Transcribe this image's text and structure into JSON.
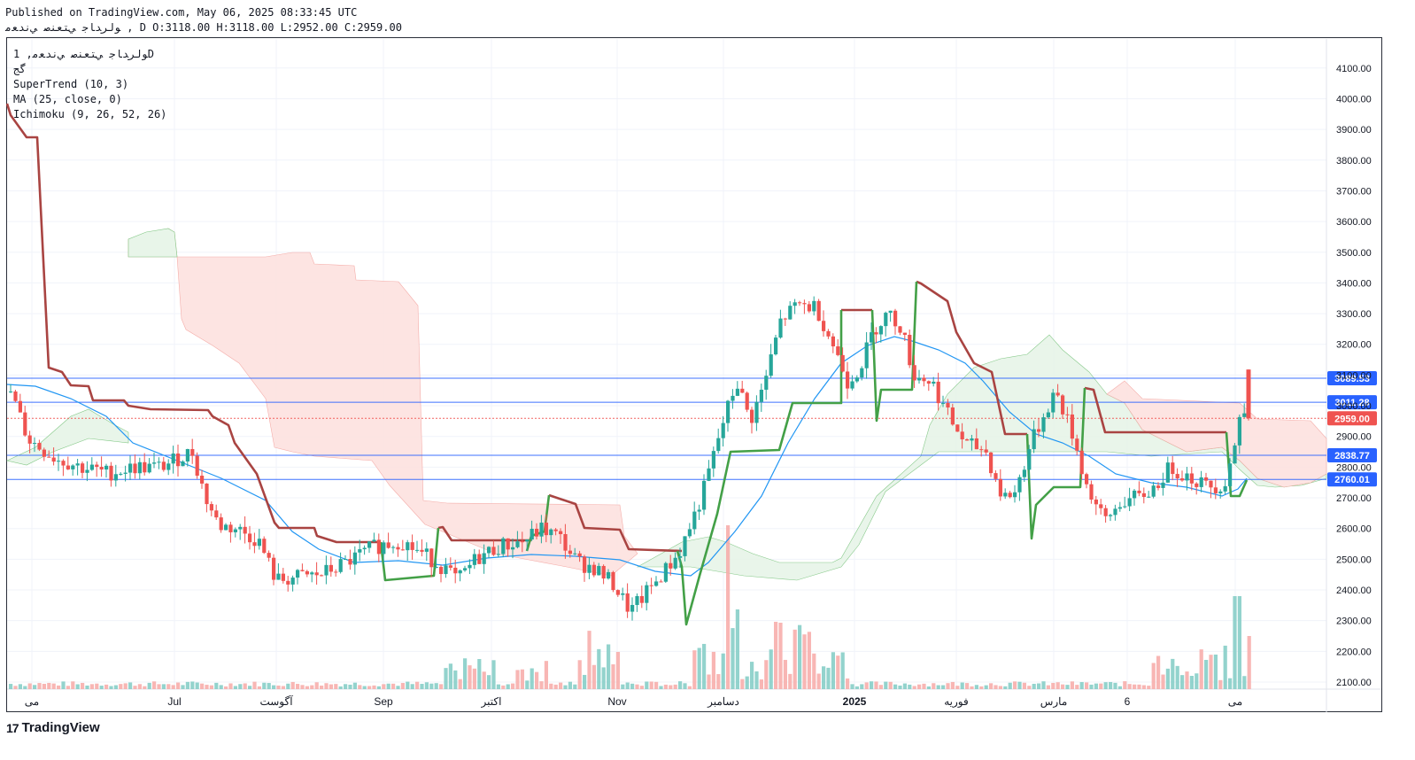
{
  "header": {
    "published": "Published on TradingView.com, May 06, 2025 08:33:45 UTC",
    "symbol_line": "ﻮﻟﺮﺪﺎﺟ ﻲﺘﻌﻨﺻ ﻲﻧﺪﻌﻣ , D O:3118.00 H:3118.00 L:2952.00 C:2959.00"
  },
  "legend": {
    "line1": "ﻮﻟﺮﺪﺎﺟ ﻲﺘﻌﻨﺻ ﻲﻧﺪﻌﻣ, 1D",
    "line2": "ﮔﺞ",
    "supertrend": "SuperTrend (10, 3)",
    "ma": "MA (25, close, 0)",
    "ichimoku": "Ichimoku (9, 26, 52, 26)"
  },
  "footer": {
    "brand": "TradingView",
    "logo_mark": "17"
  },
  "colors": {
    "up": "#26a69a",
    "down": "#ef5350",
    "supertrend_up": "#43a047",
    "supertrend_down": "#a94442",
    "ma": "#2196f3",
    "hline": "#2962ff",
    "kumo_bull": "#e8f5e9",
    "kumo_bear": "#fde3e1"
  },
  "chart_data": {
    "type": "candlestick",
    "ylim": [
      2070,
      4170
    ],
    "y_ticks": [
      2100,
      2200,
      2300,
      2400,
      2500,
      2600,
      2700,
      2800,
      2900,
      3000,
      3100,
      3200,
      3300,
      3400,
      3500,
      3600,
      3700,
      3800,
      3900,
      4000,
      4100
    ],
    "x_labels": [
      "ﻣﯽ",
      "Jul",
      "ﺁﮔﻮﺳﺖ",
      "Sep",
      "ﺍﮐﺘﺒﺮ",
      "Nov",
      "ﺩﺳﺎﻣﺒﺮ",
      "2025",
      "ﻓﻮﺭﯾﻪ",
      "ﻣﺎﺭﺱ",
      "6",
      "ﻣﯽ"
    ],
    "price_labels": [
      {
        "value": 3089.53,
        "text": "3089.53",
        "color": "#2962ff"
      },
      {
        "value": 3011.28,
        "text": "3011.28",
        "color": "#2962ff"
      },
      {
        "value": 2959.0,
        "text": "2959.00",
        "color": "#ef5350"
      },
      {
        "value": 2838.77,
        "text": "2838.77",
        "color": "#2962ff"
      },
      {
        "value": 2760.01,
        "text": "2760.01",
        "color": "#2962ff"
      }
    ],
    "last_price": 2959.0,
    "ohlc_last": {
      "open": 3118.0,
      "high": 3118.0,
      "low": 2952.0,
      "close": 2959.0
    }
  }
}
